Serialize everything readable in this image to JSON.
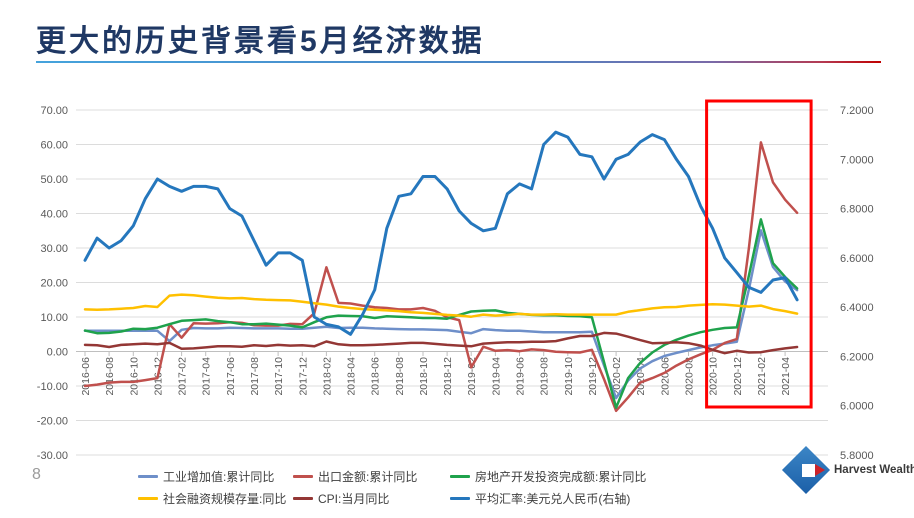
{
  "page": {
    "number": "8",
    "title": "更大的历史背景看5月经济数据"
  },
  "logo": {
    "text": "Harvest Wealth"
  },
  "theme": {
    "title_color": "#1F3864",
    "axis_text_color": "#595959",
    "grid_color": "#DCDCDC",
    "axis_line_color": "#BFBFBF"
  },
  "chart_data": {
    "type": "line",
    "title": "",
    "x_monthly": [
      "2016-06",
      "2016-07",
      "2016-08",
      "2016-09",
      "2016-10",
      "2016-11",
      "2016-12",
      "2017-01",
      "2017-02",
      "2017-03",
      "2017-04",
      "2017-05",
      "2017-06",
      "2017-07",
      "2017-08",
      "2017-09",
      "2017-10",
      "2017-11",
      "2017-12",
      "2018-01",
      "2018-02",
      "2018-03",
      "2018-04",
      "2018-05",
      "2018-06",
      "2018-07",
      "2018-08",
      "2018-09",
      "2018-10",
      "2018-11",
      "2018-12",
      "2019-01",
      "2019-02",
      "2019-03",
      "2019-04",
      "2019-05",
      "2019-06",
      "2019-07",
      "2019-08",
      "2019-09",
      "2019-10",
      "2019-11",
      "2019-12",
      "2020-01",
      "2020-02",
      "2020-03",
      "2020-04",
      "2020-05",
      "2020-06",
      "2020-07",
      "2020-08",
      "2020-09",
      "2020-10",
      "2020-11",
      "2020-12",
      "2021-01",
      "2021-02",
      "2021-03",
      "2021-04",
      "2021-05"
    ],
    "x_tick_labels": [
      "2016-06",
      "2016-08",
      "2016-10",
      "2016-12",
      "2017-02",
      "2017-04",
      "2017-06",
      "2017-08",
      "2017-10",
      "2017-12",
      "2018-02",
      "2018-04",
      "2018-06",
      "2018-08",
      "2018-10",
      "2018-12",
      "2019-02",
      "2019-04",
      "2019-06",
      "2019-08",
      "2019-10",
      "2019-12",
      "2020-02",
      "2020-04",
      "2020-06",
      "2020-08",
      "2020-10",
      "2020-12",
      "2021-02",
      "2021-04"
    ],
    "left_axis": {
      "min": -30,
      "max": 70,
      "ticks": [
        "70.00",
        "60.00",
        "50.00",
        "40.00",
        "30.00",
        "20.00",
        "10.00",
        "0.00",
        "-10.00",
        "-20.00",
        "-30.00"
      ]
    },
    "right_axis": {
      "min": 5.8,
      "max": 7.2,
      "ticks": [
        "7.2000",
        "7.0000",
        "6.8000",
        "6.6000",
        "6.4000",
        "6.2000",
        "6.0000",
        "5.8000"
      ]
    },
    "series": [
      {
        "name": "工业增加值:累计同比",
        "color": "#6E8FC9",
        "axis": "left",
        "values": [
          6,
          6,
          6,
          6,
          6,
          6,
          6,
          3,
          6.3,
          6.8,
          6.7,
          6.7,
          6.9,
          6.8,
          6.7,
          6.7,
          6.7,
          6.6,
          6.6,
          6.9,
          7.2,
          6.8,
          6.9,
          6.9,
          6.7,
          6.6,
          6.5,
          6.4,
          6.4,
          6.3,
          6.2,
          5.7,
          5.3,
          6.5,
          6.2,
          6,
          6,
          5.8,
          5.6,
          5.6,
          5.6,
          5.6,
          5.7,
          -4,
          -13.5,
          -8.4,
          -4.9,
          -2.8,
          -1.3,
          -0.4,
          0.4,
          1.2,
          1.8,
          2.3,
          2.8,
          18,
          35.1,
          24.5,
          20.3,
          17.8
        ]
      },
      {
        "name": "出口金额:累计同比",
        "color": "#C0504D",
        "axis": "left",
        "values": [
          -10,
          -9.6,
          -9,
          -8.8,
          -8.8,
          -8.3,
          -7.7,
          7.9,
          4,
          8.2,
          8.1,
          8.2,
          8.5,
          8.3,
          7.6,
          7.5,
          7.5,
          8,
          7.9,
          11.1,
          24.4,
          14.1,
          13.9,
          13.3,
          12.8,
          12.6,
          12.2,
          12.2,
          12.6,
          11.8,
          9.9,
          9.1,
          -4.6,
          1.4,
          0.2,
          0.4,
          0.1,
          0.6,
          0.4,
          -0.1,
          -0.2,
          -0.3,
          0.5,
          -8,
          -17.2,
          -13.3,
          -9,
          -7.7,
          -6.2,
          -4.1,
          -2.3,
          -0.8,
          0.5,
          2.5,
          3.6,
          30,
          60.6,
          49,
          44,
          40.2
        ]
      },
      {
        "name": "房地产开发投资完成额:累计同比",
        "color": "#1FA24C",
        "axis": "left",
        "values": [
          6.1,
          5.3,
          5.4,
          5.8,
          6.6,
          6.5,
          6.9,
          7.9,
          8.9,
          9.1,
          9.3,
          8.8,
          8.5,
          7.9,
          7.9,
          8.1,
          7.8,
          7.5,
          7,
          8.5,
          9.9,
          10.4,
          10.3,
          10.2,
          9.7,
          10.2,
          10.1,
          9.9,
          9.7,
          9.7,
          9.5,
          10.6,
          11.6,
          11.8,
          11.9,
          11.2,
          10.9,
          10.6,
          10.5,
          10.5,
          10.3,
          10.2,
          9.9,
          -3,
          -16.3,
          -7.7,
          -3.3,
          -0.3,
          1.9,
          3.4,
          4.6,
          5.6,
          6.3,
          6.8,
          7,
          22,
          38.3,
          25.6,
          21.6,
          18.3
        ]
      },
      {
        "name": "社会融资规模存量:同比",
        "color": "#FFC000",
        "axis": "left",
        "values": [
          12.2,
          12.1,
          12.2,
          12.4,
          12.6,
          13.2,
          12.9,
          16.2,
          16.5,
          16.3,
          15.9,
          15.6,
          15.4,
          15.5,
          15.2,
          15,
          14.9,
          14.8,
          14.4,
          14,
          13.6,
          13,
          12.6,
          12.3,
          12.1,
          11.9,
          11.7,
          11.4,
          11.2,
          10.9,
          10.6,
          10.4,
          10.1,
          10.7,
          10.4,
          10.6,
          10.9,
          10.7,
          10.7,
          10.8,
          10.7,
          10.7,
          10.7,
          10.7,
          10.7,
          11.5,
          12,
          12.5,
          12.8,
          12.9,
          13.3,
          13.5,
          13.7,
          13.6,
          13.3,
          13,
          13.3,
          12.3,
          11.7,
          11
        ]
      },
      {
        "name": "CPI:当月同比",
        "color": "#943735",
        "axis": "left",
        "values": [
          1.9,
          1.8,
          1.3,
          1.9,
          2.1,
          2.3,
          2.1,
          2.5,
          0.8,
          0.9,
          1.2,
          1.5,
          1.5,
          1.4,
          1.8,
          1.6,
          1.9,
          1.7,
          1.8,
          1.5,
          2.9,
          2.1,
          1.8,
          1.8,
          1.9,
          2.1,
          2.3,
          2.5,
          2.5,
          2.2,
          1.9,
          1.7,
          1.5,
          2.3,
          2.5,
          2.7,
          2.7,
          2.8,
          2.8,
          3,
          3.8,
          4.5,
          4.5,
          5.4,
          5.2,
          4.3,
          3.3,
          2.4,
          2.5,
          2.7,
          2.4,
          1.7,
          0.5,
          -0.5,
          0.2,
          -0.3,
          -0.2,
          0.4,
          0.9,
          1.3
        ]
      },
      {
        "name": "平均汇率:美元兑人民币(右轴)",
        "color": "#2577BD",
        "axis": "right",
        "values": [
          6.59,
          6.68,
          6.64,
          6.67,
          6.73,
          6.84,
          6.92,
          6.89,
          6.87,
          6.89,
          6.89,
          6.88,
          6.8,
          6.77,
          6.67,
          6.57,
          6.62,
          6.62,
          6.59,
          6.36,
          6.33,
          6.32,
          6.29,
          6.37,
          6.47,
          6.72,
          6.85,
          6.86,
          6.93,
          6.93,
          6.88,
          6.79,
          6.74,
          6.71,
          6.72,
          6.86,
          6.9,
          6.88,
          7.06,
          7.11,
          7.09,
          7.02,
          7.01,
          6.92,
          7,
          7.02,
          7.07,
          7.1,
          7.08,
          7,
          6.93,
          6.81,
          6.72,
          6.6,
          6.54,
          6.48,
          6.46,
          6.51,
          6.52,
          6.43
        ]
      }
    ],
    "highlight_box": {
      "from": "2020-10",
      "to": "2021-05",
      "color": "#FF0000"
    },
    "legend_position": "bottom",
    "grid": true
  }
}
